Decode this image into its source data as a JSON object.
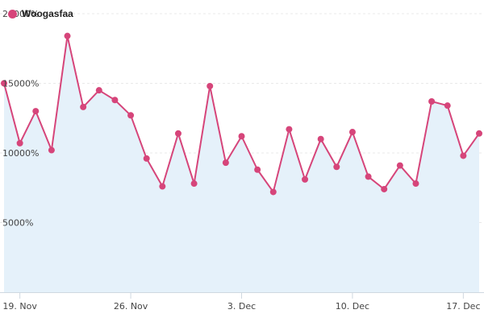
{
  "chart_data": {
    "type": "area",
    "x": [
      "18 Nov",
      "19 Nov",
      "20 Nov",
      "21 Nov",
      "22 Nov",
      "23 Nov",
      "24 Nov",
      "25 Nov",
      "26 Nov",
      "27 Nov",
      "28 Nov",
      "29 Nov",
      "30 Nov",
      "1 Dec",
      "2 Dec",
      "3 Dec",
      "4 Dec",
      "5 Dec",
      "6 Dec",
      "7 Dec",
      "8 Dec",
      "9 Dec",
      "10 Dec",
      "11 Dec",
      "12 Dec",
      "13 Dec",
      "14 Dec",
      "15 Dec",
      "16 Dec",
      "17 Dec",
      "18 Dec"
    ],
    "series": [
      {
        "name": "Woogasfaa",
        "values": [
          15000,
          10700,
          13000,
          10200,
          18400,
          13300,
          14500,
          13800,
          12700,
          9600,
          7600,
          11400,
          7800,
          14800,
          9300,
          11200,
          8800,
          7200,
          11700,
          8100,
          11000,
          9000,
          11500,
          8300,
          7400,
          9100,
          7800,
          13700,
          13400,
          9800,
          11400
        ],
        "color": "#d6457a",
        "fill": "#e5f1fa"
      }
    ],
    "y_ticks": [
      "5000%",
      "10000%",
      "15000%",
      "20000%"
    ],
    "x_ticks": [
      "19. Nov",
      "26. Nov",
      "3. Dec",
      "10. Dec",
      "17. Dec"
    ],
    "ylim": [
      0,
      20000
    ],
    "grid": "horizontal dashed",
    "legend": "top-left"
  }
}
